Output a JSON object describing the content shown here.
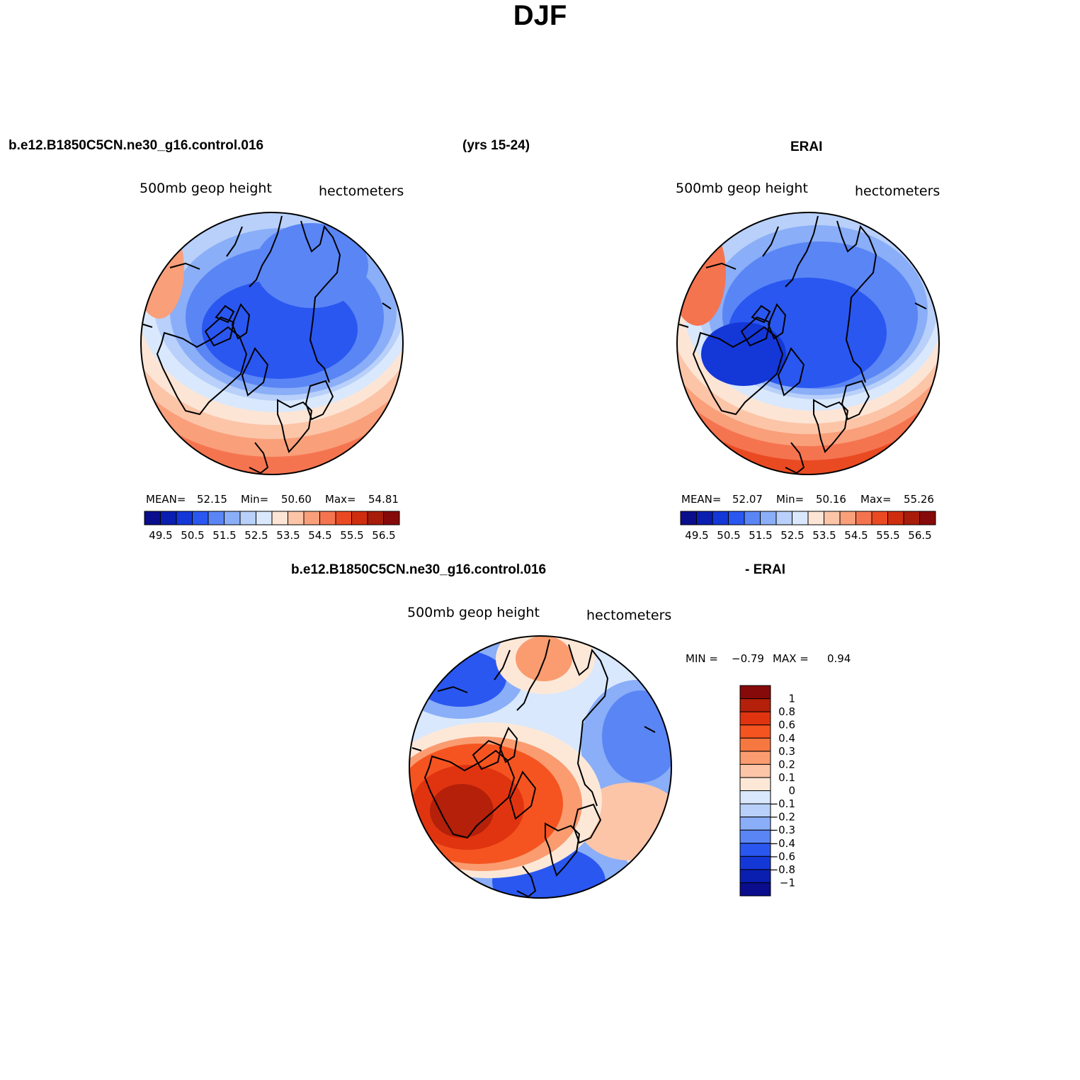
{
  "title": "DJF",
  "headers": {
    "case_name": "b.e12.B1850C5CN.ne30_g16.control.016",
    "years": "(yrs 15-24)",
    "ref_name": "ERAI",
    "diff_case": "b.e12.B1850C5CN.ne30_g16.control.016",
    "diff_ref": "- ERAI"
  },
  "panels": [
    {
      "id": "model",
      "left_label": "500mb geop height",
      "right_label": "hectometers",
      "stats": {
        "mean_label": "MEAN=",
        "mean": "52.15",
        "min_label": "Min=",
        "min": "50.60",
        "max_label": "Max=",
        "max": "54.81"
      }
    },
    {
      "id": "obs",
      "left_label": "500mb geop height",
      "right_label": "hectometers",
      "stats": {
        "mean_label": "MEAN=",
        "mean": "52.07",
        "min_label": "Min=",
        "min": "50.16",
        "max_label": "Max=",
        "max": "55.26"
      }
    },
    {
      "id": "diff",
      "left_label": "500mb geop height",
      "right_label": "hectometers",
      "stats": {
        "min_label": "MIN =",
        "min": "−0.79",
        "max_label": "MAX =",
        "max": "0.94"
      }
    }
  ],
  "colorbar_h": {
    "colors": [
      "#0a0d8c",
      "#0a1fb0",
      "#1437d8",
      "#2a57f0",
      "#5a85f5",
      "#8aaef7",
      "#b8d0fa",
      "#d9e8fc",
      "#fde5d5",
      "#fcc5a8",
      "#f99f7a",
      "#f57450",
      "#ea4a22",
      "#cf2e0e",
      "#a81c0a",
      "#860a0a"
    ],
    "labels": [
      "49.5",
      "50.5",
      "51.5",
      "52.5",
      "53.5",
      "54.5",
      "55.5",
      "56.5"
    ]
  },
  "colorbar_v": {
    "colors": [
      "#860a0a",
      "#b4200a",
      "#e03410",
      "#f55420",
      "#f77740",
      "#fa9c70",
      "#fcc5a8",
      "#fde8d8",
      "#d9e8fc",
      "#b8d0fa",
      "#8aaef7",
      "#5a85f5",
      "#2a57f0",
      "#1437d8",
      "#0a1fb0",
      "#0a0d8c"
    ],
    "labels": [
      "1",
      "0.8",
      "0.6",
      "0.4",
      "0.3",
      "0.2",
      "0.1",
      "0",
      "−0.1",
      "−0.2",
      "−0.3",
      "−0.4",
      "−0.6",
      "−0.8",
      "−1"
    ]
  }
}
